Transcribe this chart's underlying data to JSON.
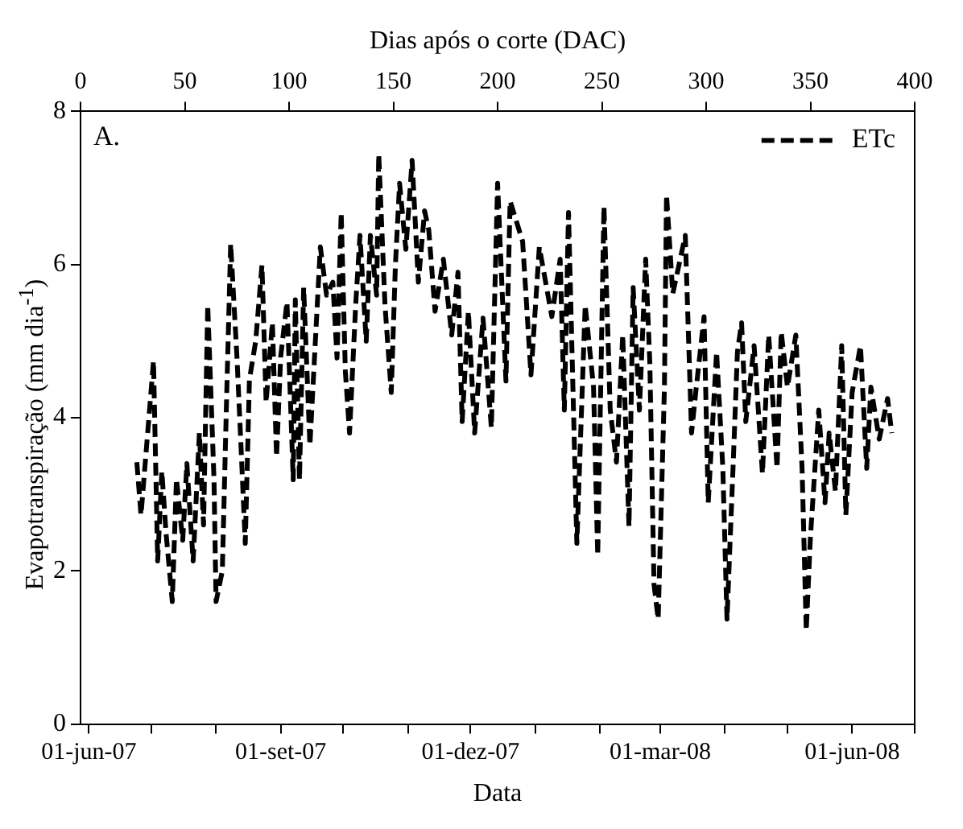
{
  "chart_data": {
    "type": "line",
    "xlabel": "Data",
    "ylabel": "Evapotranspiração (mm dia$^{-1}$)",
    "x2label": "Dias após o corte (DAC)",
    "annotations": [
      "A."
    ],
    "x": [
      "2007-06-24",
      "2007-06-26",
      "2007-07-02",
      "2007-07-04",
      "2007-07-06",
      "2007-07-08",
      "2007-07-11",
      "2007-07-13",
      "2007-07-16",
      "2007-07-18",
      "2007-07-21",
      "2007-07-24",
      "2007-07-26",
      "2007-07-28",
      "2007-07-31",
      "2007-08-01",
      "2007-08-04",
      "2007-08-06",
      "2007-08-08",
      "2007-08-11",
      "2007-08-13",
      "2007-08-15",
      "2007-08-17",
      "2007-08-20",
      "2007-08-23",
      "2007-08-25",
      "2007-08-28",
      "2007-08-30",
      "2007-09-01",
      "2007-09-04",
      "2007-09-07",
      "2007-09-08",
      "2007-09-10",
      "2007-09-12",
      "2007-09-15",
      "2007-09-18",
      "2007-09-20",
      "2007-09-23",
      "2007-09-26",
      "2007-09-28",
      "2007-09-30",
      "2007-10-02",
      "2007-10-04",
      "2007-10-07",
      "2007-10-09",
      "2007-10-12",
      "2007-10-14",
      "2007-10-17",
      "2007-10-18",
      "2007-10-21",
      "2007-10-24",
      "2007-10-26",
      "2007-10-28",
      "2007-10-31",
      "2007-11-03",
      "2007-11-06",
      "2007-11-09",
      "2007-11-11",
      "2007-11-14",
      "2007-11-18",
      "2007-11-22",
      "2007-11-25",
      "2007-11-27",
      "2007-11-30",
      "2007-12-03",
      "2007-12-07",
      "2007-12-11",
      "2007-12-14",
      "2007-12-18",
      "2007-12-20",
      "2007-12-26",
      "2007-12-30",
      "2008-01-03",
      "2008-01-09",
      "2008-01-13",
      "2008-01-15",
      "2008-01-17",
      "2008-01-21",
      "2008-01-25",
      "2008-01-29",
      "2008-01-31",
      "2008-02-03",
      "2008-02-06",
      "2008-02-09",
      "2008-02-12",
      "2008-02-15",
      "2008-02-17",
      "2008-02-20",
      "2008-02-23",
      "2008-02-25",
      "2008-02-27",
      "2008-02-29",
      "2008-03-03",
      "2008-03-04",
      "2008-03-07",
      "2008-03-13",
      "2008-03-16",
      "2008-03-18",
      "2008-03-22",
      "2008-03-24",
      "2008-03-28",
      "2008-03-31",
      "2008-04-02",
      "2008-04-05",
      "2008-04-07",
      "2008-04-09",
      "2008-04-11",
      "2008-04-15",
      "2008-04-19",
      "2008-04-22",
      "2008-04-26",
      "2008-04-28",
      "2008-05-01",
      "2008-05-05",
      "2008-05-08",
      "2008-05-10",
      "2008-05-12",
      "2008-05-16",
      "2008-05-19",
      "2008-05-21",
      "2008-05-24",
      "2008-05-27",
      "2008-05-29",
      "2008-06-01",
      "2008-06-05",
      "2008-06-08",
      "2008-06-10",
      "2008-06-14",
      "2008-06-18",
      "2008-06-20"
    ],
    "series": [
      {
        "name": "ETc",
        "color": "#000000",
        "values": [
          3.42,
          2.73,
          4.74,
          2.13,
          3.3,
          2.5,
          1.6,
          3.2,
          2.4,
          3.4,
          2.13,
          3.8,
          2.6,
          5.47,
          3.2,
          1.6,
          2.0,
          4.2,
          6.27,
          4.8,
          3.6,
          2.36,
          4.5,
          5.0,
          5.99,
          4.2,
          5.24,
          3.49,
          4.8,
          5.51,
          3.19,
          5.54,
          3.19,
          5.7,
          3.64,
          5.2,
          6.23,
          5.6,
          5.77,
          4.78,
          6.68,
          4.6,
          3.8,
          5.5,
          6.38,
          5.0,
          6.38,
          5.6,
          7.44,
          5.47,
          4.33,
          6.0,
          7.06,
          6.2,
          7.36,
          5.77,
          6.7,
          6.45,
          5.39,
          6.07,
          5.08,
          5.9,
          3.95,
          5.39,
          3.8,
          5.3,
          3.87,
          7.06,
          4.48,
          6.83,
          6.3,
          4.56,
          6.23,
          5.32,
          6.07,
          4.1,
          6.68,
          2.36,
          5.47,
          4.4,
          2.2,
          6.76,
          4.1,
          3.42,
          5.08,
          2.58,
          5.7,
          4.1,
          6.07,
          4.71,
          1.82,
          1.37,
          4.4,
          6.91,
          5.62,
          6.38,
          3.8,
          4.33,
          5.32,
          2.89,
          4.86,
          3.34,
          1.37,
          3.42,
          4.86,
          5.24,
          3.95,
          4.94,
          3.27,
          5.08,
          3.34,
          5.12,
          4.4,
          5.08,
          3.34,
          1.22,
          2.44,
          4.1,
          2.89,
          3.8,
          3.04,
          4.94,
          2.73,
          4.33,
          4.94,
          3.34,
          4.4,
          3.72,
          4.25,
          3.8
        ]
      }
    ],
    "xlim": [
      "2007-05-28",
      "2008-07-01"
    ],
    "xticks": [
      {
        "value": "2007-06-01",
        "label": "01-jun-07"
      },
      {
        "value": "2007-07-01",
        "label": null
      },
      {
        "value": "2007-08-01",
        "label": null
      },
      {
        "value": "2007-09-01",
        "label": "01-set-07"
      },
      {
        "value": "2007-10-01",
        "label": null
      },
      {
        "value": "2007-11-01",
        "label": null
      },
      {
        "value": "2007-12-01",
        "label": "01-dez-07"
      },
      {
        "value": "2008-01-01",
        "label": null
      },
      {
        "value": "2008-02-01",
        "label": null
      },
      {
        "value": "2008-03-01",
        "label": "01-mar-08"
      },
      {
        "value": "2008-04-01",
        "label": null
      },
      {
        "value": "2008-05-01",
        "label": null
      },
      {
        "value": "2008-06-01",
        "label": "01-jun-08"
      },
      {
        "value": "2008-07-01",
        "label": null
      }
    ],
    "x2lim": [
      0,
      400
    ],
    "x2ticks": [
      0,
      50,
      100,
      150,
      200,
      250,
      300,
      350,
      400
    ],
    "ylim": [
      0,
      8
    ],
    "yticks": [
      0,
      2,
      4,
      6,
      8
    ],
    "grid": false,
    "legend": "top right",
    "marker": "none",
    "line_style": "dashed"
  }
}
